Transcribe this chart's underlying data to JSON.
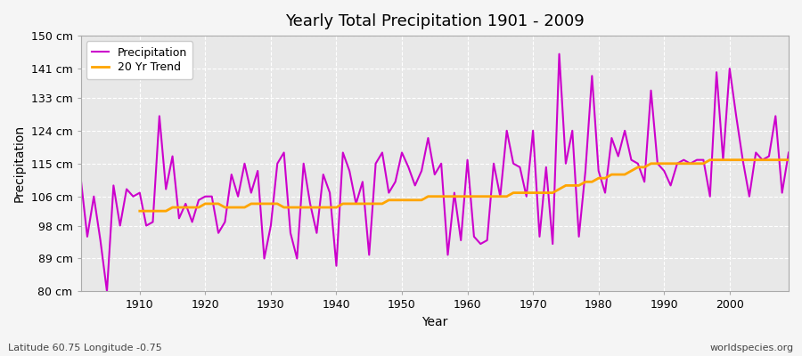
{
  "title": "Yearly Total Precipitation 1901 - 2009",
  "xlabel": "Year",
  "ylabel": "Precipitation",
  "footnote_left": "Latitude 60.75 Longitude -0.75",
  "footnote_right": "worldspecies.org",
  "ylim": [
    80,
    150
  ],
  "ytick_labels": [
    "80 cm",
    "89 cm",
    "98 cm",
    "106 cm",
    "115 cm",
    "124 cm",
    "133 cm",
    "141 cm",
    "150 cm"
  ],
  "ytick_values": [
    80,
    89,
    98,
    106,
    115,
    124,
    133,
    141,
    150
  ],
  "xlim": [
    1901,
    2009
  ],
  "precip_color": "#CC00CC",
  "trend_color": "#FFA500",
  "fig_bg_color": "#F5F5F5",
  "plot_bg_color": "#E8E8E8",
  "grid_color": "#FFFFFF",
  "spine_color": "#AAAAAA",
  "legend_label_precip": "Precipitation",
  "legend_label_trend": "20 Yr Trend",
  "xticks": [
    1910,
    1920,
    1930,
    1940,
    1950,
    1960,
    1970,
    1980,
    1990,
    2000
  ],
  "years": [
    1901,
    1902,
    1903,
    1904,
    1905,
    1906,
    1907,
    1908,
    1909,
    1910,
    1911,
    1912,
    1913,
    1914,
    1915,
    1916,
    1917,
    1918,
    1919,
    1920,
    1921,
    1922,
    1923,
    1924,
    1925,
    1926,
    1927,
    1928,
    1929,
    1930,
    1931,
    1932,
    1933,
    1934,
    1935,
    1936,
    1937,
    1938,
    1939,
    1940,
    1941,
    1942,
    1943,
    1944,
    1945,
    1946,
    1947,
    1948,
    1949,
    1950,
    1951,
    1952,
    1953,
    1954,
    1955,
    1956,
    1957,
    1958,
    1959,
    1960,
    1961,
    1962,
    1963,
    1964,
    1965,
    1966,
    1967,
    1968,
    1969,
    1970,
    1971,
    1972,
    1973,
    1974,
    1975,
    1976,
    1977,
    1978,
    1979,
    1980,
    1981,
    1982,
    1983,
    1984,
    1985,
    1986,
    1987,
    1988,
    1989,
    1990,
    1991,
    1992,
    1993,
    1994,
    1995,
    1996,
    1997,
    1998,
    1999,
    2000,
    2001,
    2002,
    2003,
    2004,
    2005,
    2006,
    2007,
    2008,
    2009
  ],
  "precip": [
    111,
    95,
    106,
    94,
    80,
    109,
    98,
    108,
    106,
    107,
    98,
    99,
    128,
    108,
    117,
    100,
    104,
    99,
    105,
    106,
    106,
    96,
    99,
    112,
    106,
    115,
    107,
    113,
    89,
    98,
    115,
    118,
    96,
    89,
    115,
    104,
    96,
    112,
    107,
    87,
    118,
    113,
    104,
    110,
    90,
    115,
    118,
    107,
    110,
    118,
    114,
    109,
    113,
    122,
    112,
    115,
    90,
    107,
    94,
    116,
    95,
    93,
    94,
    115,
    106,
    124,
    115,
    114,
    106,
    124,
    95,
    114,
    93,
    145,
    115,
    124,
    95,
    113,
    139,
    113,
    107,
    122,
    117,
    124,
    116,
    115,
    110,
    135,
    115,
    113,
    109,
    115,
    116,
    115,
    116,
    116,
    106,
    140,
    116,
    141,
    128,
    116,
    106,
    118,
    116,
    117,
    128,
    107,
    118
  ],
  "trend": [
    null,
    null,
    null,
    null,
    null,
    null,
    null,
    null,
    null,
    102,
    102,
    102,
    102,
    102,
    103,
    103,
    103,
    103,
    103,
    104,
    104,
    104,
    103,
    103,
    103,
    103,
    104,
    104,
    104,
    104,
    104,
    103,
    103,
    103,
    103,
    103,
    103,
    103,
    103,
    103,
    104,
    104,
    104,
    104,
    104,
    104,
    104,
    105,
    105,
    105,
    105,
    105,
    105,
    106,
    106,
    106,
    106,
    106,
    106,
    106,
    106,
    106,
    106,
    106,
    106,
    106,
    107,
    107,
    107,
    107,
    107,
    107,
    107,
    108,
    109,
    109,
    109,
    110,
    110,
    111,
    111,
    112,
    112,
    112,
    113,
    114,
    114,
    115,
    115,
    115,
    115,
    115,
    115,
    115,
    115,
    115,
    116,
    116,
    116,
    116,
    116,
    116,
    116,
    116,
    116,
    116,
    116,
    116,
    116
  ]
}
